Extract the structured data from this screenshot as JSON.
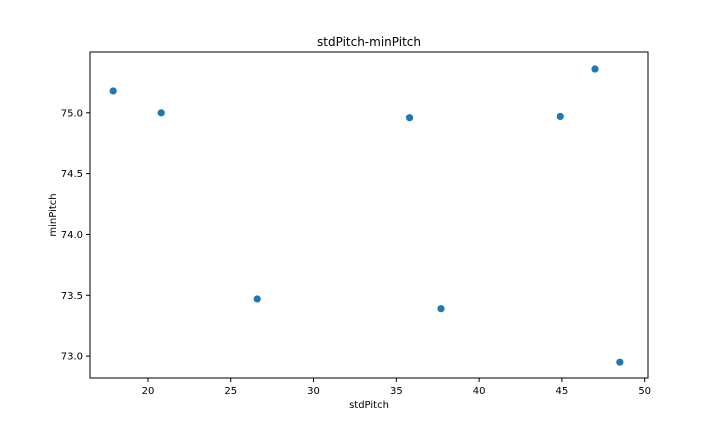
{
  "chart_data": {
    "type": "scatter",
    "title": "stdPitch-minPitch",
    "xlabel": "stdPitch",
    "ylabel": "minPitch",
    "xlim": [
      16.5,
      50.2
    ],
    "ylim": [
      72.82,
      75.5
    ],
    "xticks": [
      20,
      25,
      30,
      35,
      40,
      45,
      50
    ],
    "yticks": [
      73.0,
      73.5,
      74.0,
      74.5,
      75.0
    ],
    "xtick_labels": [
      "20",
      "25",
      "30",
      "35",
      "40",
      "45",
      "50"
    ],
    "ytick_labels": [
      "73.0",
      "73.5",
      "74.0",
      "74.5",
      "75.0"
    ],
    "grid": false,
    "legend": false,
    "marker_color": "#1f77b4",
    "points": [
      {
        "x": 17.9,
        "y": 75.18
      },
      {
        "x": 20.8,
        "y": 75.0
      },
      {
        "x": 26.6,
        "y": 73.47
      },
      {
        "x": 35.8,
        "y": 74.96
      },
      {
        "x": 37.7,
        "y": 73.39
      },
      {
        "x": 44.9,
        "y": 74.97
      },
      {
        "x": 47.0,
        "y": 75.36
      },
      {
        "x": 48.5,
        "y": 72.95
      }
    ]
  }
}
